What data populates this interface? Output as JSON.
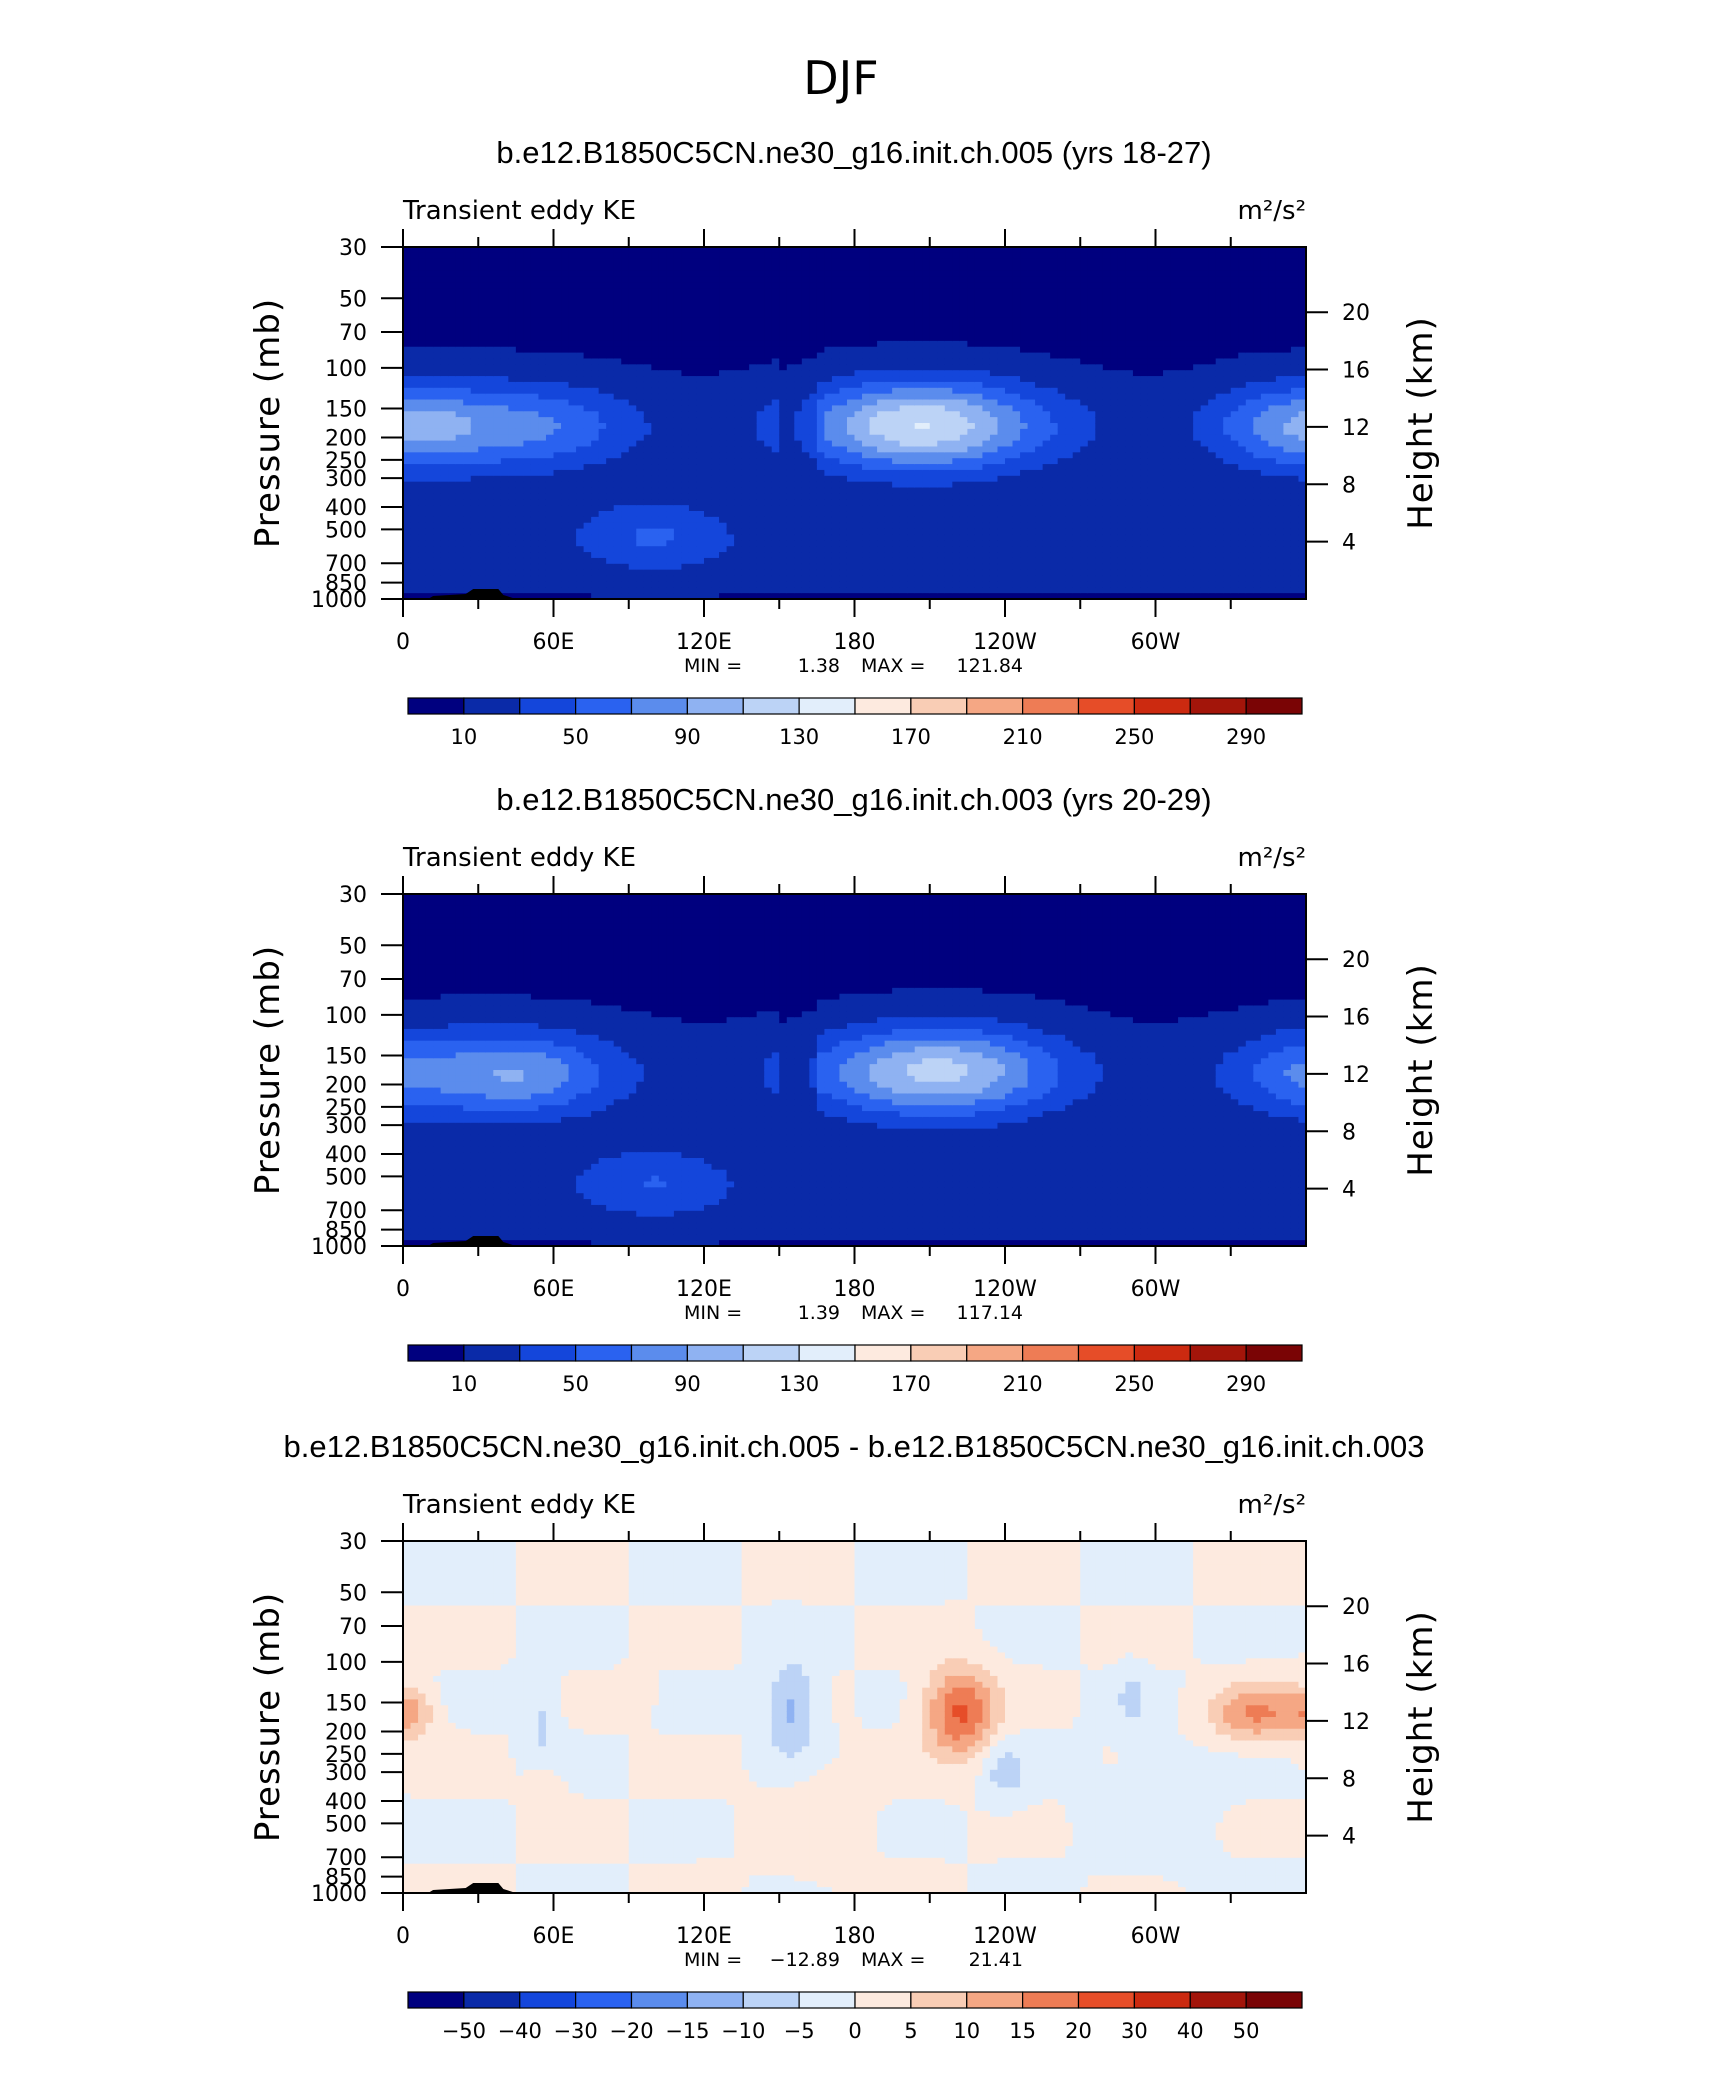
{
  "figure_title": "DJF",
  "colorbar_colors": [
    "#00007f",
    "#0a2aa8",
    "#1446db",
    "#2a62f0",
    "#5b8ced",
    "#8fb2f2",
    "#bcd3f6",
    "#e2eefb",
    "#fdeadf",
    "#f9cdb5",
    "#f5a784",
    "#ee7c55",
    "#e64d28",
    "#cc2a10",
    "#a3150a",
    "#7a0405"
  ],
  "chart_data": [
    {
      "type": "heatmap",
      "title": "b.e12.B1850C5CN.ne30_g16.init.ch.005 (yrs 18-27)",
      "subtitle_left": "Transient eddy KE",
      "units_label": "m²/s²",
      "ylabel_left": "Pressure (mb)",
      "ylabel_right": "Height (km)",
      "x_ticks": [
        "0",
        "60E",
        "120E",
        "180",
        "120W",
        "60W"
      ],
      "y_ticks_left": [
        "30",
        "50",
        "70",
        "100",
        "150",
        "200",
        "250",
        "300",
        "400",
        "500",
        "700",
        "850",
        "1000"
      ],
      "y_ticks_right": [
        "20",
        "16",
        "12",
        "8",
        "4"
      ],
      "min_label": "MIN =",
      "min_value": "1.38",
      "max_label": "MAX =",
      "max_value": "121.84",
      "colorbar_labels": [
        "10",
        "50",
        "90",
        "130",
        "170",
        "210",
        "250",
        "290"
      ],
      "levels": [
        0,
        10,
        30,
        50,
        70,
        90,
        110,
        130,
        150,
        170,
        190,
        210,
        230,
        250,
        270,
        290,
        310
      ],
      "features": [
        {
          "lon": 10,
          "lev": 12,
          "amp": 22,
          "w": 20,
          "h": 1.3
        },
        {
          "lon": 100,
          "lev": 4.5,
          "amp": 32,
          "w": 28,
          "h": 1.2
        },
        {
          "lon": 205,
          "lev": 12.2,
          "amp": 55,
          "w": 38,
          "h": 1.4
        },
        {
          "lon": 345,
          "lev": 12,
          "amp": 28,
          "w": 25,
          "h": 1.3
        },
        {
          "lon": 60,
          "lev": 12,
          "amp": 10,
          "w": 30,
          "h": 1.1
        }
      ]
    },
    {
      "type": "heatmap",
      "title": "b.e12.B1850C5CN.ne30_g16.init.ch.003 (yrs 20-29)",
      "subtitle_left": "Transient eddy KE",
      "units_label": "m²/s²",
      "ylabel_left": "Pressure (mb)",
      "ylabel_right": "Height (km)",
      "x_ticks": [
        "0",
        "60E",
        "120E",
        "180",
        "120W",
        "60W"
      ],
      "y_ticks_left": [
        "30",
        "50",
        "70",
        "100",
        "150",
        "200",
        "250",
        "300",
        "400",
        "500",
        "700",
        "850",
        "1000"
      ],
      "y_ticks_right": [
        "20",
        "16",
        "12",
        "8",
        "4"
      ],
      "min_label": "MIN =",
      "min_value": "1.39",
      "max_label": "MAX =",
      "max_value": "117.14",
      "colorbar_labels": [
        "10",
        "50",
        "90",
        "130",
        "170",
        "210",
        "250",
        "290"
      ],
      "levels": [
        0,
        10,
        30,
        50,
        70,
        90,
        110,
        130,
        150,
        170,
        190,
        210,
        230,
        250,
        270,
        290,
        310
      ],
      "features": [
        {
          "lon": 50,
          "lev": 12,
          "amp": 20,
          "w": 25,
          "h": 1.2
        },
        {
          "lon": 100,
          "lev": 4.5,
          "amp": 30,
          "w": 28,
          "h": 1.2
        },
        {
          "lon": 215,
          "lev": 12.4,
          "amp": 42,
          "w": 38,
          "h": 1.4
        },
        {
          "lon": 355,
          "lev": 12,
          "amp": 15,
          "w": 18,
          "h": 1.2
        }
      ]
    },
    {
      "type": "heatmap",
      "title": "b.e12.B1850C5CN.ne30_g16.init.ch.005 - b.e12.B1850C5CN.ne30_g16.init.ch.003",
      "subtitle_left": "Transient eddy KE",
      "units_label": "m²/s²",
      "ylabel_left": "Pressure (mb)",
      "ylabel_right": "Height (km)",
      "x_ticks": [
        "0",
        "60E",
        "120E",
        "180",
        "120W",
        "60W"
      ],
      "y_ticks_left": [
        "30",
        "50",
        "70",
        "100",
        "150",
        "200",
        "250",
        "300",
        "400",
        "500",
        "700",
        "850",
        "1000"
      ],
      "y_ticks_right": [
        "20",
        "16",
        "12",
        "8",
        "4"
      ],
      "min_label": "MIN =",
      "min_value": "−12.89",
      "max_label": "MAX =",
      "max_value": "21.41",
      "colorbar_labels": [
        "−50",
        "−40",
        "−30",
        "−20",
        "−15",
        "−10",
        "−5",
        "0",
        "5",
        "10",
        "15",
        "20",
        "30",
        "40",
        "50"
      ],
      "levels": [
        -70,
        -50,
        -40,
        -30,
        -20,
        -15,
        -10,
        -5,
        0,
        5,
        10,
        15,
        20,
        30,
        40,
        50,
        70
      ],
      "features": [
        {
          "lon": 2,
          "lev": 12.6,
          "amp": 11,
          "w": 10,
          "h": 0.8
        },
        {
          "lon": 55,
          "lev": 12,
          "amp": -6,
          "w": 7,
          "h": 1.6
        },
        {
          "lon": 56,
          "lev": 7.5,
          "amp": 5,
          "w": 7,
          "h": 0.8
        },
        {
          "lon": 95,
          "lev": 14,
          "amp": 4,
          "w": 5,
          "h": 0.8
        },
        {
          "lon": 155,
          "lev": 12.8,
          "amp": -12,
          "w": 10,
          "h": 1.5
        },
        {
          "lon": 222,
          "lev": 12.6,
          "amp": 21,
          "w": 14,
          "h": 1.4
        },
        {
          "lon": 240,
          "lev": 8.5,
          "amp": -7,
          "w": 9,
          "h": 1.0
        },
        {
          "lon": 290,
          "lev": 13.6,
          "amp": -6,
          "w": 5,
          "h": 1.0
        },
        {
          "lon": 340,
          "lev": 12.5,
          "amp": 15,
          "w": 18,
          "h": 0.9
        },
        {
          "lon": 165,
          "lev": 5,
          "amp": 3,
          "w": 20,
          "h": 2.0
        },
        {
          "lon": 300,
          "lev": 6,
          "amp": -3,
          "w": 25,
          "h": 2.0
        }
      ]
    }
  ]
}
